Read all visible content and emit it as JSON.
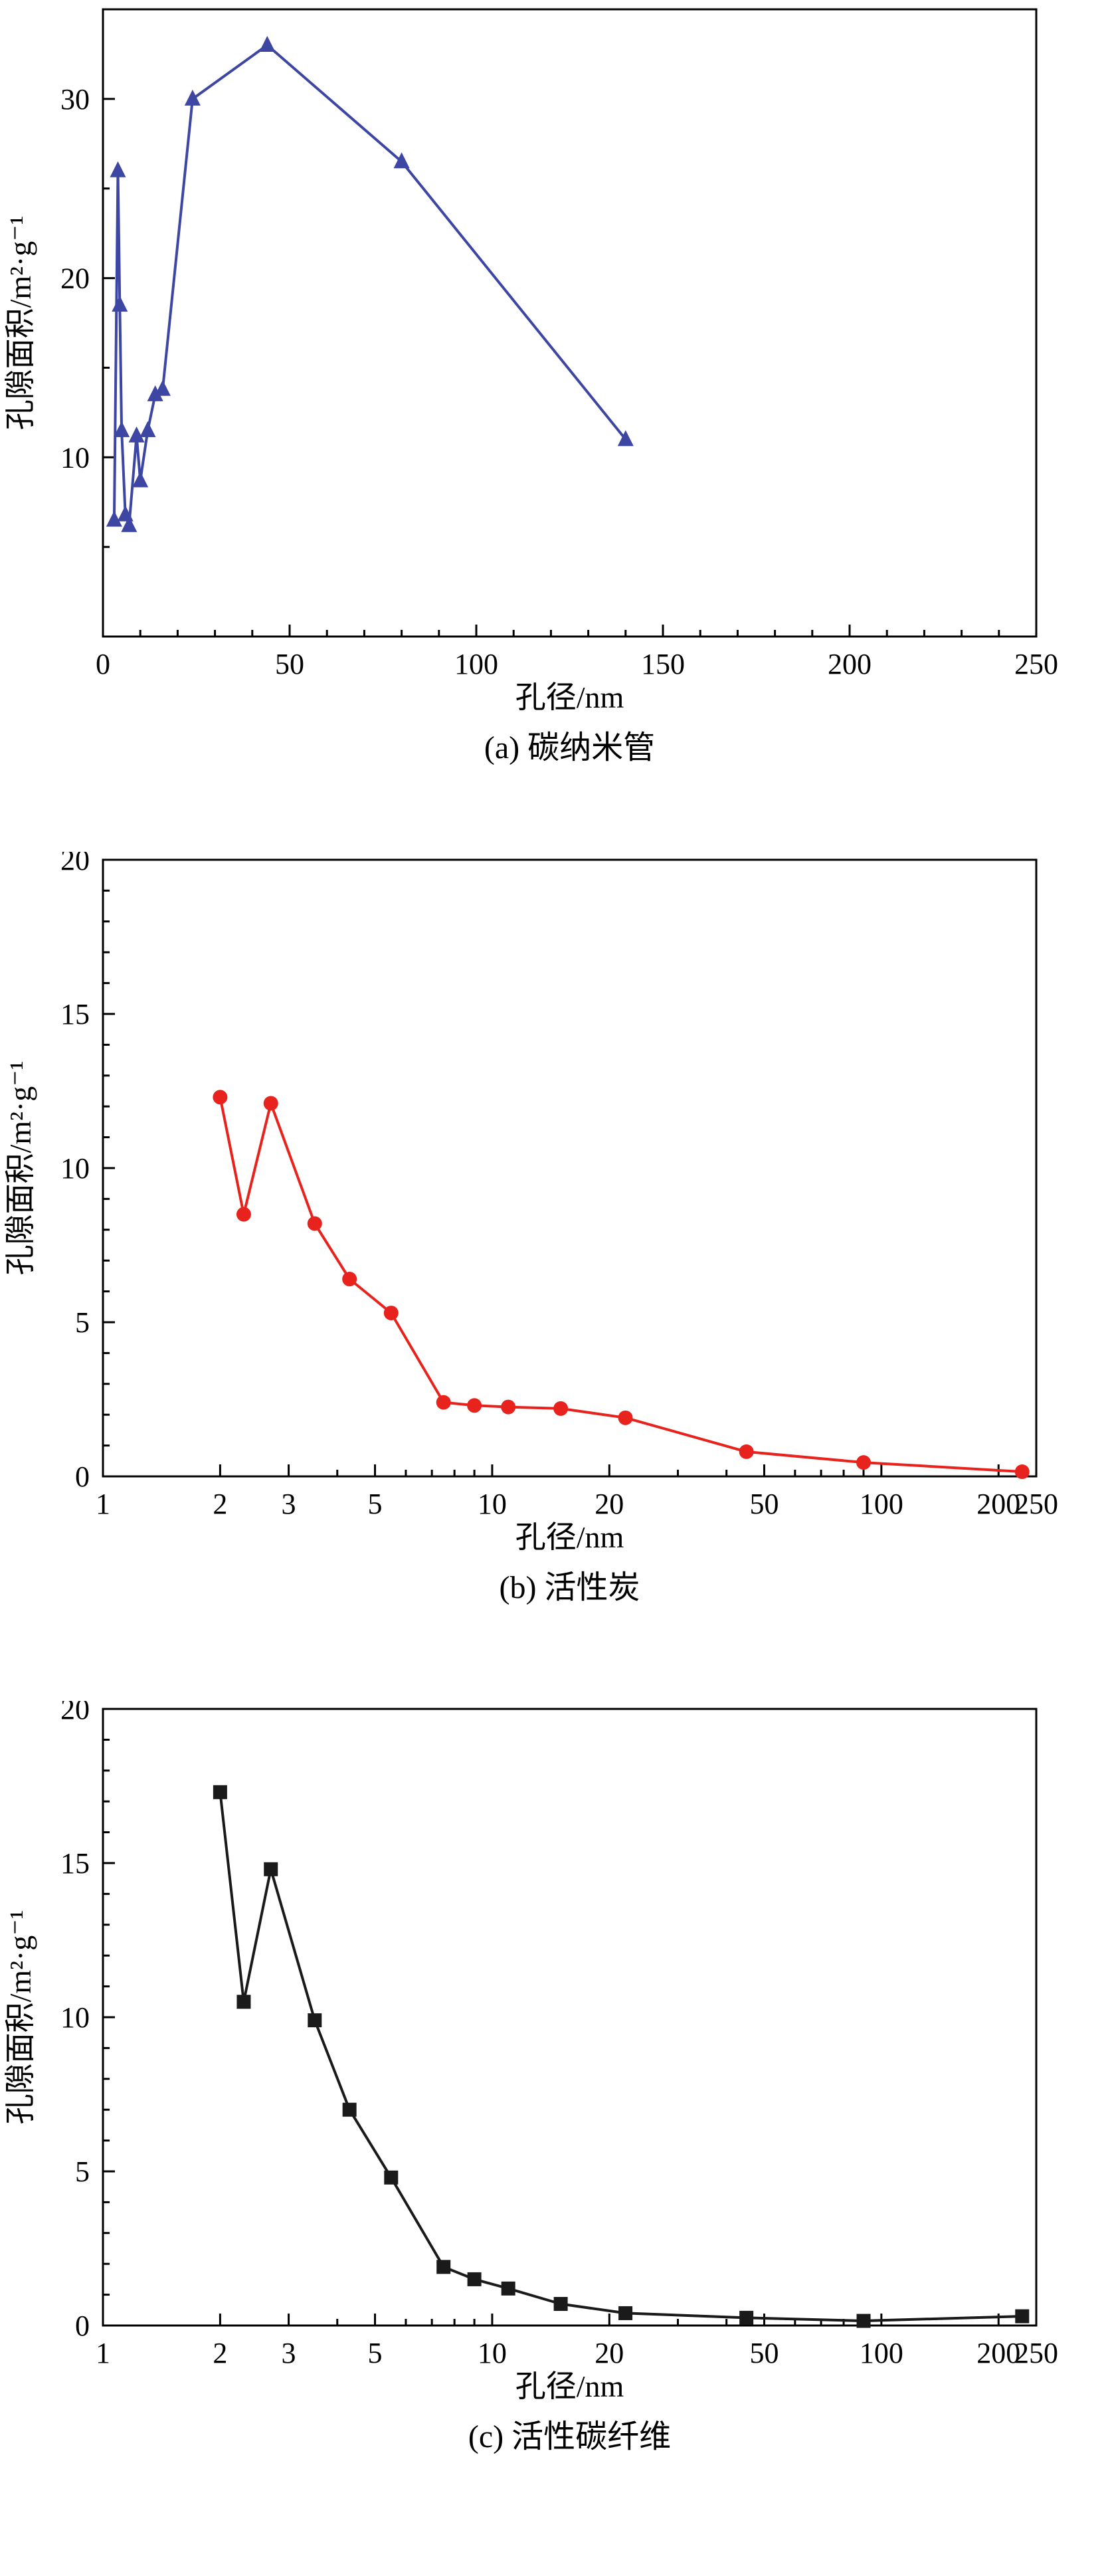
{
  "page": {
    "background": "#ffffff",
    "axis_color": "#000000"
  },
  "chart_data": [
    {
      "id": "a",
      "type": "line",
      "title": "(a) 碳纳米管",
      "series_name": "碳纳米管",
      "xlabel": "孔径/nm",
      "ylabel": "孔隙面积/m²·g⁻¹",
      "x_scale": "linear",
      "xlim": [
        0,
        250
      ],
      "ylim": [
        0,
        35
      ],
      "xticks_major": [
        0,
        50,
        100,
        150,
        200,
        250
      ],
      "xtick_labels": [
        "0",
        "50",
        "100",
        "150",
        "200",
        "250"
      ],
      "xticks_minor_step": 10,
      "yticks_major": [
        10,
        20,
        30
      ],
      "ytick_labels": [
        "10",
        "20",
        "30"
      ],
      "yticks_minor_step": 5,
      "grid": false,
      "legend": null,
      "marker": "triangle",
      "color": "#3D46A2",
      "x": [
        3,
        4,
        4.5,
        5,
        6,
        7,
        9,
        10,
        12,
        14,
        16,
        24,
        44,
        80,
        140
      ],
      "y": [
        6.5,
        26,
        18.5,
        11.5,
        6.8,
        6.2,
        11.2,
        8.7,
        11.5,
        13.5,
        13.8,
        30,
        33,
        26.5,
        11
      ]
    },
    {
      "id": "b",
      "type": "line",
      "title": "(b) 活性炭",
      "series_name": "活性炭",
      "xlabel": "孔径/nm",
      "ylabel": "孔隙面积/m²·g⁻¹",
      "x_scale": "log",
      "xlim": [
        1,
        250
      ],
      "ylim": [
        0,
        20
      ],
      "xticks_major": [
        1,
        2,
        3,
        5,
        10,
        20,
        50,
        100,
        200,
        250
      ],
      "xtick_labels": [
        "1",
        "2",
        "3",
        "5",
        "10",
        "20",
        "50",
        "100",
        "200",
        "250"
      ],
      "xticks_minor": [
        4,
        6,
        7,
        8,
        9,
        30,
        40,
        60,
        70,
        80,
        90
      ],
      "yticks_major": [
        0,
        5,
        10,
        15,
        20
      ],
      "ytick_labels": [
        "0",
        "5",
        "10",
        "15",
        "20"
      ],
      "yticks_minor_step": 1,
      "grid": false,
      "legend": null,
      "marker": "circle",
      "color": "#E8231D",
      "x": [
        2,
        2.3,
        2.7,
        3.5,
        4.3,
        5.5,
        7.5,
        9,
        11,
        15,
        22,
        45,
        90,
        230
      ],
      "y": [
        12.3,
        8.5,
        12.1,
        8.2,
        6.4,
        5.3,
        2.4,
        2.3,
        2.25,
        2.2,
        1.9,
        0.8,
        0.45,
        0.15
      ]
    },
    {
      "id": "c",
      "type": "line",
      "title": "(c) 活性碳纤维",
      "series_name": "活性碳纤维",
      "xlabel": "孔径/nm",
      "ylabel": "孔隙面积/m²·g⁻¹",
      "x_scale": "log",
      "xlim": [
        1,
        250
      ],
      "ylim": [
        0,
        20
      ],
      "xticks_major": [
        1,
        2,
        3,
        5,
        10,
        20,
        50,
        100,
        200,
        250
      ],
      "xtick_labels": [
        "1",
        "2",
        "3",
        "5",
        "10",
        "20",
        "50",
        "100",
        "200",
        "250"
      ],
      "xticks_minor": [
        4,
        6,
        7,
        8,
        9,
        30,
        40,
        60,
        70,
        80,
        90
      ],
      "yticks_major": [
        0,
        5,
        10,
        15,
        20
      ],
      "ytick_labels": [
        "0",
        "5",
        "10",
        "15",
        "20"
      ],
      "yticks_minor_step": 1,
      "grid": false,
      "legend": null,
      "marker": "square",
      "color": "#1A1A1A",
      "x": [
        2,
        2.3,
        2.7,
        3.5,
        4.3,
        5.5,
        7.5,
        9,
        11,
        15,
        22,
        45,
        90,
        230
      ],
      "y": [
        17.3,
        10.5,
        14.8,
        9.9,
        7.0,
        4.8,
        1.9,
        1.5,
        1.2,
        0.7,
        0.4,
        0.25,
        0.15,
        0.3
      ]
    }
  ]
}
